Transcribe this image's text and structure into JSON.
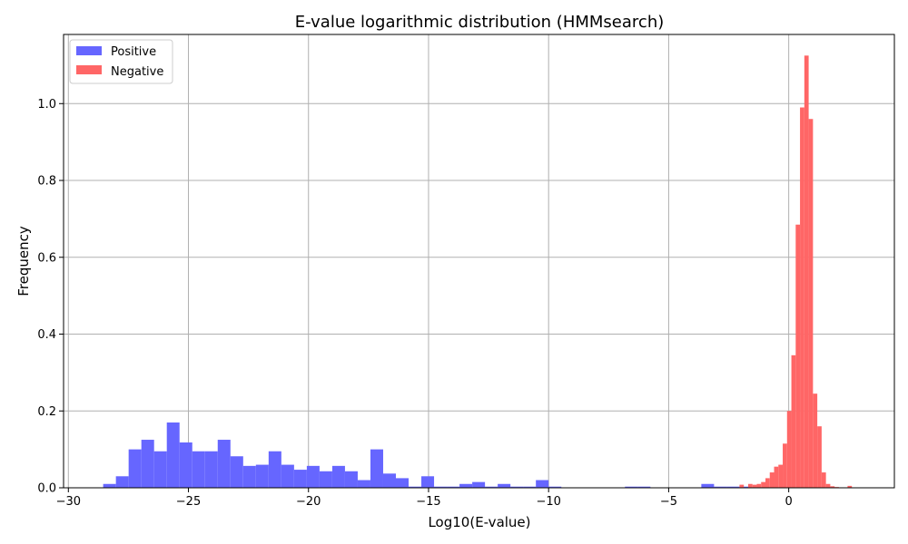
{
  "chart_data": {
    "type": "histogram",
    "title": "E-value logarithmic distribution (HMMsearch)",
    "xlabel": "Log10(E-value)",
    "ylabel": "Frequency",
    "xlim": [
      -30.2,
      4.4
    ],
    "ylim": [
      0,
      1.18
    ],
    "xticks": [
      -30,
      -25,
      -20,
      -15,
      -10,
      -5,
      0
    ],
    "xtick_labels": [
      "−30",
      "−25",
      "−20",
      "−15",
      "−10",
      "−5",
      "0"
    ],
    "yticks": [
      0.0,
      0.2,
      0.4,
      0.6,
      0.8,
      1.0
    ],
    "ytick_labels": [
      "0.0",
      "0.2",
      "0.4",
      "0.6",
      "0.8",
      "1.0"
    ],
    "grid": true,
    "legend_placement": "top-left",
    "series": [
      {
        "name": "Positive",
        "color": "#6666ff",
        "bin_start": -28.55,
        "bin_width": 0.53,
        "values": [
          0.01,
          0.03,
          0.1,
          0.125,
          0.095,
          0.17,
          0.118,
          0.095,
          0.095,
          0.125,
          0.082,
          0.057,
          0.06,
          0.095,
          0.06,
          0.047,
          0.057,
          0.043,
          0.057,
          0.043,
          0.02,
          0.1,
          0.037,
          0.025,
          0.003,
          0.03,
          0.003,
          0.003,
          0.01,
          0.015,
          0.003,
          0.01,
          0.003,
          0.003,
          0.02,
          0.003,
          0.0,
          0.0,
          0.0,
          0.0,
          0.0,
          0.003,
          0.003,
          0.0,
          0.0,
          0.0,
          0.0,
          0.01,
          0.003,
          0.003,
          0.003
        ]
      },
      {
        "name": "Negative",
        "color": "#ff6666",
        "bin_start": -2.05,
        "bin_width": 0.18,
        "values": [
          0.008,
          0.0,
          0.01,
          0.008,
          0.01,
          0.015,
          0.025,
          0.04,
          0.055,
          0.06,
          0.115,
          0.2,
          0.345,
          0.685,
          0.99,
          1.125,
          0.96,
          0.245,
          0.16,
          0.04,
          0.01,
          0.004,
          0.002,
          0.0,
          0.0,
          0.005
        ]
      }
    ]
  }
}
